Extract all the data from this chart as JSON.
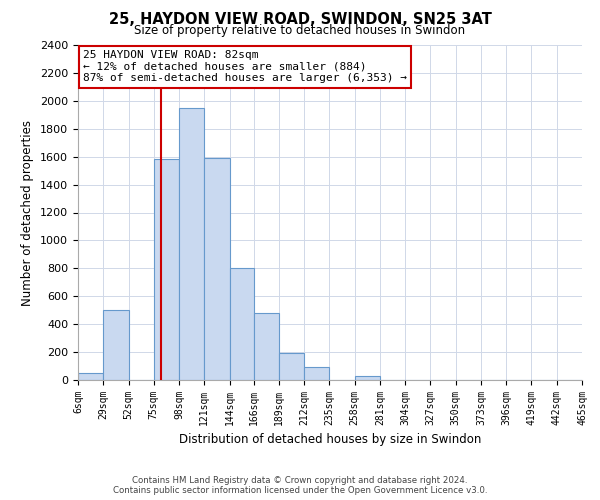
{
  "title": "25, HAYDON VIEW ROAD, SWINDON, SN25 3AT",
  "subtitle": "Size of property relative to detached houses in Swindon",
  "xlabel": "Distribution of detached houses by size in Swindon",
  "ylabel": "Number of detached properties",
  "bar_edges": [
    6,
    29,
    52,
    75,
    98,
    121,
    144,
    166,
    189,
    212,
    235,
    258,
    281,
    304,
    327,
    350,
    373,
    396,
    419,
    442,
    465
  ],
  "bar_heights": [
    50,
    500,
    0,
    1580,
    1950,
    1590,
    800,
    480,
    190,
    90,
    0,
    30,
    0,
    0,
    0,
    0,
    0,
    0,
    0,
    0
  ],
  "bar_color": "#c9d9f0",
  "bar_edge_color": "#6699cc",
  "ylim": [
    0,
    2400
  ],
  "yticks": [
    0,
    200,
    400,
    600,
    800,
    1000,
    1200,
    1400,
    1600,
    1800,
    2000,
    2200,
    2400
  ],
  "vline_x": 82,
  "vline_color": "#cc0000",
  "annotation_title": "25 HAYDON VIEW ROAD: 82sqm",
  "annotation_line1": "← 12% of detached houses are smaller (884)",
  "annotation_line2": "87% of semi-detached houses are larger (6,353) →",
  "annotation_box_color": "#ffffff",
  "annotation_box_edge_color": "#cc0000",
  "footer_line1": "Contains HM Land Registry data © Crown copyright and database right 2024.",
  "footer_line2": "Contains public sector information licensed under the Open Government Licence v3.0.",
  "tick_labels": [
    "6sqm",
    "29sqm",
    "52sqm",
    "75sqm",
    "98sqm",
    "121sqm",
    "144sqm",
    "166sqm",
    "189sqm",
    "212sqm",
    "235sqm",
    "258sqm",
    "281sqm",
    "304sqm",
    "327sqm",
    "350sqm",
    "373sqm",
    "396sqm",
    "419sqm",
    "442sqm",
    "465sqm"
  ],
  "background_color": "#ffffff",
  "grid_color": "#d0d8e8"
}
